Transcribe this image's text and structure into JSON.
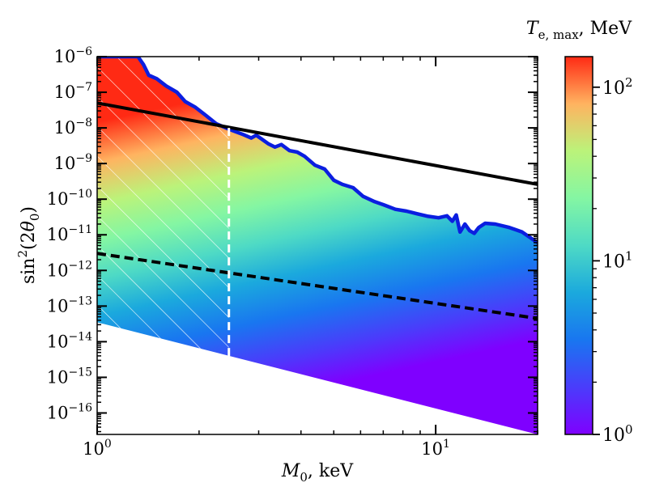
{
  "chart_data": {
    "type": "area",
    "x_scale": "log",
    "y_scale": "log",
    "xlabel_symbol": "M",
    "xlabel_sub": "0",
    "xlabel_unit": ", keV",
    "ylabel_func": "sin",
    "ylabel_sup": "2",
    "ylabel_arg_open": "(2",
    "ylabel_theta": "θ",
    "ylabel_sub": "0",
    "ylabel_arg_close": ")",
    "xlim": [
      1,
      20
    ],
    "ylim": [
      2.5e-17,
      1e-06
    ],
    "x_ticks_major": [
      {
        "value": 1,
        "base": "10",
        "exp": "0"
      },
      {
        "value": 10,
        "base": "10",
        "exp": "1"
      }
    ],
    "y_ticks_major": [
      {
        "value": 1e-06,
        "base": "10",
        "exp": "−6"
      },
      {
        "value": 1e-07,
        "base": "10",
        "exp": "−7"
      },
      {
        "value": 1e-08,
        "base": "10",
        "exp": "−8"
      },
      {
        "value": 1e-09,
        "base": "10",
        "exp": "−9"
      },
      {
        "value": 1e-10,
        "base": "10",
        "exp": "−10"
      },
      {
        "value": 1e-11,
        "base": "10",
        "exp": "−11"
      },
      {
        "value": 1e-12,
        "base": "10",
        "exp": "−12"
      },
      {
        "value": 1e-13,
        "base": "10",
        "exp": "−13"
      },
      {
        "value": 1e-14,
        "base": "10",
        "exp": "−14"
      },
      {
        "value": 1e-15,
        "base": "10",
        "exp": "−15"
      },
      {
        "value": 1e-16,
        "base": "10",
        "exp": "−16"
      }
    ],
    "colorbar": {
      "title_symbol": "T",
      "title_sub": "e, max",
      "title_unit": ", MeV",
      "scale": "log",
      "range": [
        1,
        150
      ],
      "ticks": [
        {
          "value": 1,
          "base": "10",
          "exp": "0"
        },
        {
          "value": 10,
          "base": "10",
          "exp": "1"
        },
        {
          "value": 100,
          "base": "10",
          "exp": "2"
        }
      ],
      "colormap": "rainbow"
    },
    "filled_region": {
      "color_value_range": [
        1,
        150
      ],
      "lower_boundary": [
        [
          1,
          3.5e-14
        ],
        [
          20,
          2.5e-17
        ]
      ],
      "upper_boundary_blue": {
        "color": "#0b1ee0",
        "points": [
          [
            1.0,
            1e-06
          ],
          [
            1.32,
            1e-06
          ],
          [
            1.37,
            6e-07
          ],
          [
            1.42,
            3e-07
          ],
          [
            1.5,
            2.4e-07
          ],
          [
            1.6,
            1.5e-07
          ],
          [
            1.72,
            1e-07
          ],
          [
            1.82,
            5.5e-08
          ],
          [
            1.95,
            3.8e-08
          ],
          [
            2.1,
            2.2e-08
          ],
          [
            2.25,
            1.3e-08
          ],
          [
            2.4,
            1e-08
          ],
          [
            2.55,
            8e-09
          ],
          [
            2.7,
            6.5e-09
          ],
          [
            2.85,
            5.2e-09
          ],
          [
            2.95,
            6.2e-09
          ],
          [
            3.05,
            5e-09
          ],
          [
            3.2,
            3.6e-09
          ],
          [
            3.35,
            2.9e-09
          ],
          [
            3.5,
            3.4e-09
          ],
          [
            3.7,
            2.3e-09
          ],
          [
            3.9,
            2.1e-09
          ],
          [
            4.1,
            1.6e-09
          ],
          [
            4.4,
            9e-10
          ],
          [
            4.7,
            7e-10
          ],
          [
            5.0,
            3.4e-10
          ],
          [
            5.3,
            2.6e-10
          ],
          [
            5.7,
            2.1e-10
          ],
          [
            6.1,
            1.2e-10
          ],
          [
            6.6,
            8.5e-11
          ],
          [
            7.0,
            7e-11
          ],
          [
            7.6,
            5.2e-11
          ],
          [
            8.2,
            4.6e-11
          ],
          [
            8.8,
            3.9e-11
          ],
          [
            9.5,
            3.3e-11
          ],
          [
            10.2,
            3e-11
          ],
          [
            10.8,
            3.4e-11
          ],
          [
            11.2,
            2.4e-11
          ],
          [
            11.5,
            3.6e-11
          ],
          [
            11.8,
            1.2e-11
          ],
          [
            12.2,
            2e-11
          ],
          [
            12.6,
            1.3e-11
          ],
          [
            13.0,
            1.1e-11
          ],
          [
            13.4,
            1.6e-11
          ],
          [
            14.0,
            2.1e-11
          ],
          [
            15.0,
            2e-11
          ],
          [
            16.5,
            1.6e-11
          ],
          [
            18.0,
            1.2e-11
          ],
          [
            20.0,
            6e-12
          ]
        ]
      }
    },
    "lines": [
      {
        "name": "solid-black-line",
        "style": "solid",
        "color": "#000000",
        "points": [
          [
            1,
            5e-08
          ],
          [
            20,
            2.6e-10
          ]
        ]
      },
      {
        "name": "dashed-black-line",
        "style": "dashed",
        "color": "#000000",
        "points": [
          [
            1,
            3e-12
          ],
          [
            20,
            4.5e-14
          ]
        ]
      },
      {
        "name": "white-dashed-vertical",
        "style": "dashed",
        "color": "#ffffff",
        "points": [
          [
            2.45,
            1e-08
          ],
          [
            2.45,
            3.8e-15
          ]
        ]
      }
    ],
    "hatched_region": {
      "color": "#ffffff",
      "polygon": [
        [
          1,
          1e-06
        ],
        [
          1.32,
          1e-06
        ],
        [
          1.5,
          2.4e-07
        ],
        [
          1.72,
          1e-07
        ],
        [
          1.95,
          3.8e-08
        ],
        [
          2.25,
          1.3e-08
        ],
        [
          2.45,
          1e-08
        ],
        [
          2.45,
          3.8e-15
        ],
        [
          1,
          3.5e-14
        ]
      ]
    }
  }
}
